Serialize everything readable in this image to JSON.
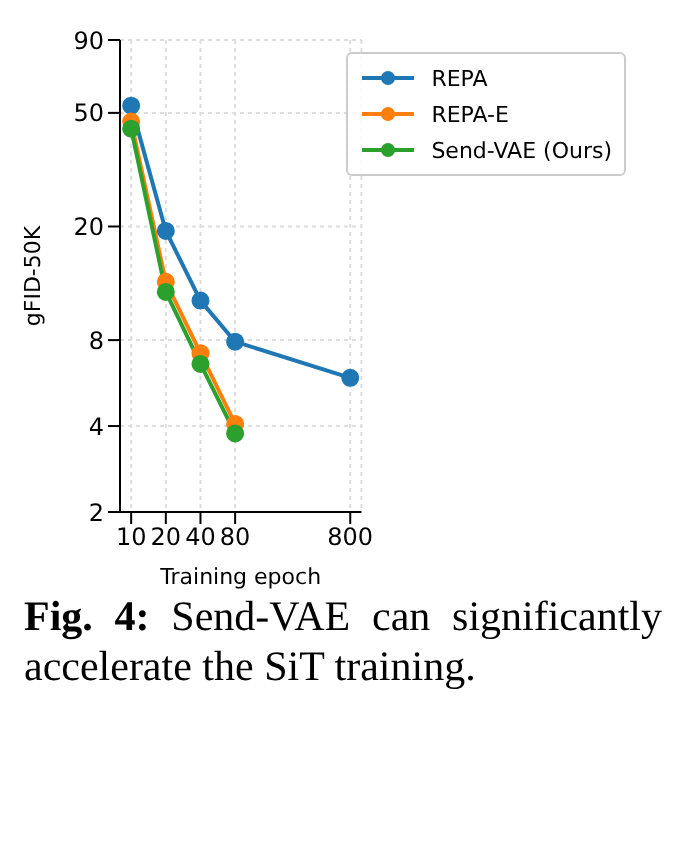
{
  "chart_data": {
    "type": "line",
    "xlabel": "Training epoch",
    "ylabel": "gFID-50K",
    "x": [
      10,
      20,
      40,
      80,
      800
    ],
    "series": [
      {
        "name": "REPA",
        "color": "#1f77b4",
        "values": [
          53,
          19.3,
          11,
          7.9,
          5.9
        ]
      },
      {
        "name": "REPA-E",
        "color": "#ff7f0e",
        "values": [
          46.6,
          12.8,
          7.2,
          4.07,
          null
        ]
      },
      {
        "name": "Send-VAE (Ours)",
        "color": "#2ca02c",
        "values": [
          44,
          11.8,
          6.6,
          3.77,
          null
        ]
      }
    ],
    "log": "xy",
    "xlim": [
      8,
      1000
    ],
    "xticks": [
      10,
      20,
      40,
      80,
      800
    ],
    "ylim": [
      2,
      90
    ],
    "yticks": [
      2,
      4,
      8,
      20,
      50,
      90
    ],
    "grid": true,
    "legend": "top right",
    "marker": "circle",
    "line_style": "solid",
    "annotations": [
      "Fig. 4:",
      "Send-VAE can significantly accelerate the SiT training."
    ]
  }
}
